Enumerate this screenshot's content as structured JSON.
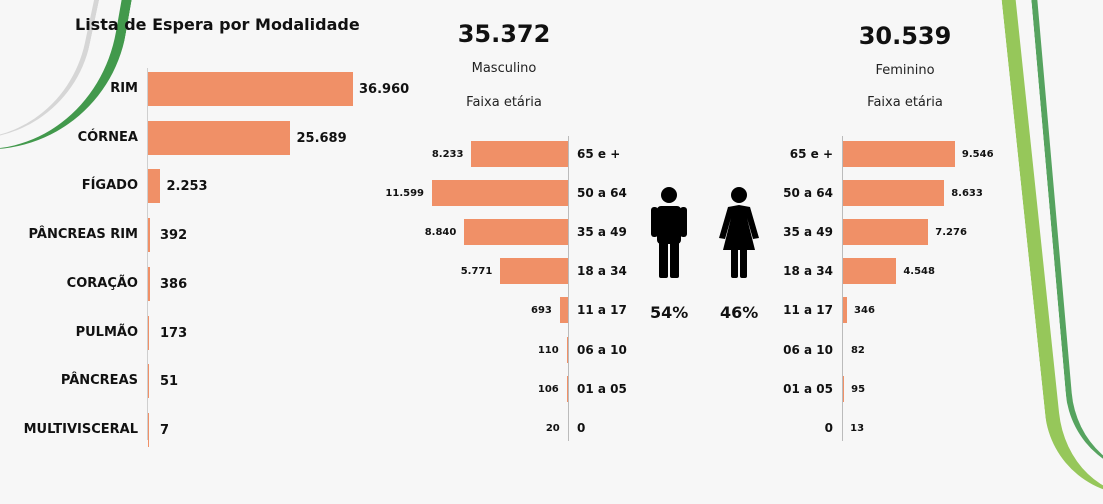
{
  "modalidade": {
    "title": "Lista de Espera por Modalidade",
    "items": [
      {
        "label": "RIM",
        "value_label": "36.960"
      },
      {
        "label": "CÓRNEA",
        "value_label": "25.689"
      },
      {
        "label": "FÍGADO",
        "value_label": "2.253"
      },
      {
        "label": "PÂNCREAS RIM",
        "value_label": "392"
      },
      {
        "label": "CORAÇÃO",
        "value_label": "386"
      },
      {
        "label": "PULMÃO",
        "value_label": "173"
      },
      {
        "label": "PÂNCREAS",
        "value_label": "51"
      },
      {
        "label": "MULTIVISCERAL",
        "value_label": "7"
      }
    ]
  },
  "masculino": {
    "total": "35.372",
    "label": "Masculino",
    "faixa": "Faixa etária",
    "percent": "54%",
    "value_labels": [
      "8.233",
      "11.599",
      "8.840",
      "5.771",
      "693",
      "110",
      "106",
      "20"
    ]
  },
  "feminino": {
    "total": "30.539",
    "label": "Feminino",
    "faixa": "Faixa etária",
    "percent": "46%",
    "value_labels": [
      "9.546",
      "8.633",
      "7.276",
      "4.548",
      "346",
      "82",
      "95",
      "13"
    ]
  },
  "age_groups": [
    "65 e +",
    "50 a 64",
    "35 a 49",
    "18 a 34",
    "11 a 17",
    "06 a 10",
    "01 a 05",
    "0"
  ],
  "icons": {
    "male": "male-person-icon",
    "female": "female-person-icon"
  },
  "colors": {
    "bar": "#f09067",
    "accent_green": "#2f8f3a",
    "accent_lime": "#8cc24a"
  },
  "chart_data": [
    {
      "type": "bar",
      "orientation": "horizontal",
      "title": "Lista de Espera por Modalidade",
      "categories": [
        "RIM",
        "CÓRNEA",
        "FÍGADO",
        "PÂNCREAS RIM",
        "CORAÇÃO",
        "PULMÃO",
        "PÂNCREAS",
        "MULTIVISCERAL"
      ],
      "values": [
        36960,
        25689,
        2253,
        392,
        386,
        173,
        51,
        7
      ]
    },
    {
      "type": "bar",
      "orientation": "horizontal",
      "title": "Masculino",
      "subtitle": "Faixa etária",
      "categories": [
        "65 e +",
        "50 a 64",
        "35 a 49",
        "18 a 34",
        "11 a 17",
        "06 a 10",
        "01 a 05",
        "0"
      ],
      "values": [
        8233,
        11599,
        8840,
        5771,
        693,
        110,
        106,
        20
      ]
    },
    {
      "type": "bar",
      "orientation": "horizontal",
      "title": "Feminino",
      "subtitle": "Faixa etária",
      "categories": [
        "65 e +",
        "50 a 64",
        "35 a 49",
        "18 a 34",
        "11 a 17",
        "06 a 10",
        "01 a 05",
        "0"
      ],
      "values": [
        9546,
        8633,
        7276,
        4548,
        346,
        82,
        95,
        13
      ]
    }
  ]
}
